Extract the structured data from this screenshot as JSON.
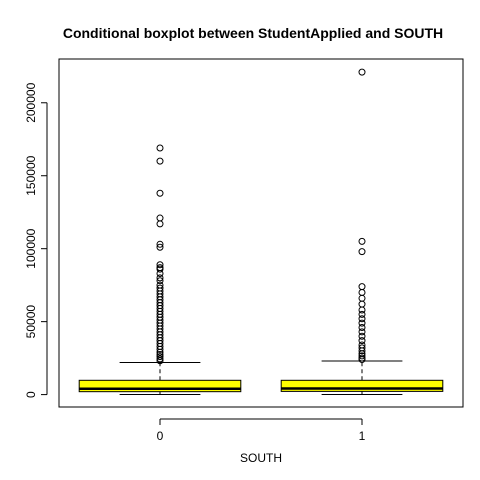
{
  "chart_data": {
    "type": "boxplot",
    "title": "Conditional boxplot between StudentApplied and SOUTH",
    "xlabel": "SOUTH",
    "ylabel": "",
    "ylim": [
      -8500,
      230000
    ],
    "yticks": [
      0,
      50000,
      100000,
      150000,
      200000
    ],
    "categories": [
      "0",
      "1"
    ],
    "box_color": "#ffff00",
    "boxes": [
      {
        "category": "0",
        "whisker_low": 50,
        "q1": 2000,
        "median": 4000,
        "q3": 9800,
        "whisker_high": 22000,
        "outliers": [
          169000,
          160000,
          138000,
          121000,
          117000,
          103000,
          101000,
          89000,
          87000,
          86000,
          83000,
          80000,
          78000,
          75000,
          73000,
          71000,
          69000,
          67000,
          65000,
          63000,
          61000,
          59000,
          57000,
          55000,
          53000,
          51000,
          49000,
          47000,
          45000,
          43000,
          41000,
          39000,
          37000,
          35000,
          33000,
          31000,
          29000,
          27500,
          26000,
          24500,
          23200
        ]
      },
      {
        "category": "1",
        "whisker_low": 50,
        "q1": 2200,
        "median": 4200,
        "q3": 9800,
        "whisker_high": 23000,
        "outliers": [
          221000,
          105000,
          98000,
          74000,
          70000,
          66000,
          62000,
          58000,
          55000,
          52000,
          49000,
          46000,
          43000,
          40000,
          37000,
          34000,
          32000,
          30000,
          28000,
          26500,
          25000,
          24000
        ]
      }
    ]
  }
}
